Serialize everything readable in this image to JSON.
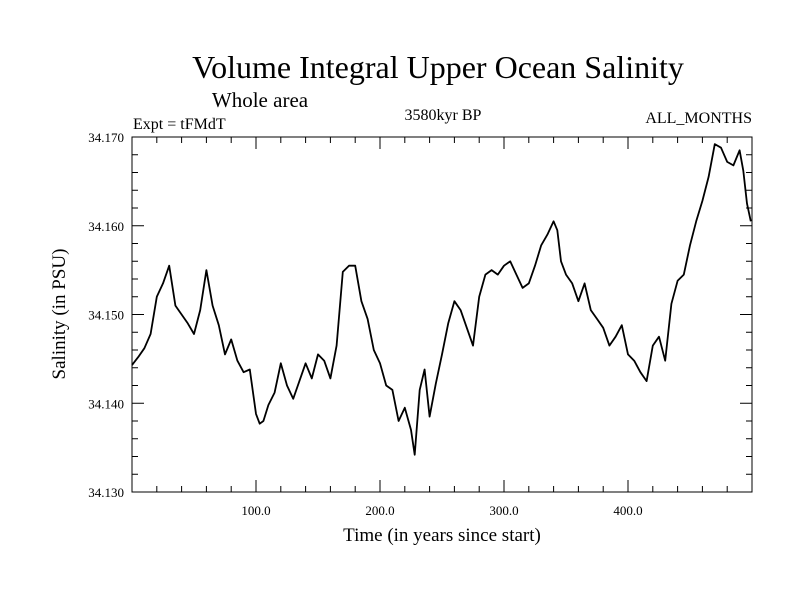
{
  "chart_data": {
    "type": "line",
    "title": "Volume Integral Upper Ocean Salinity",
    "subtitle": "Whole area",
    "left_label": "Expt = tFMdT",
    "center_label": "3580kyr BP",
    "right_label": "ALL_MONTHS",
    "xlabel": "Time (in years since start)",
    "ylabel": "Salinity (in PSU)",
    "xlim": [
      0,
      500
    ],
    "ylim": [
      34.13,
      34.17
    ],
    "x_ticks": [
      100,
      200,
      300,
      400
    ],
    "x_tick_labels": [
      "100.0",
      "200.0",
      "300.0",
      "400.0"
    ],
    "y_ticks": [
      34.13,
      34.14,
      34.15,
      34.16,
      34.17
    ],
    "y_tick_labels": [
      "34.130",
      "34.140",
      "34.150",
      "34.160",
      "34.170"
    ],
    "grid": false,
    "series": [
      {
        "name": "salinity",
        "color": "#000000",
        "x": [
          0,
          5,
          10,
          15,
          20,
          25,
          30,
          35,
          40,
          45,
          50,
          55,
          60,
          65,
          70,
          75,
          80,
          85,
          90,
          95,
          100,
          103,
          106,
          110,
          115,
          120,
          125,
          130,
          135,
          140,
          145,
          150,
          155,
          160,
          165,
          170,
          175,
          180,
          185,
          190,
          195,
          200,
          205,
          210,
          215,
          220,
          225,
          228,
          232,
          236,
          240,
          245,
          250,
          255,
          260,
          265,
          270,
          275,
          280,
          285,
          290,
          295,
          300,
          305,
          310,
          315,
          320,
          325,
          330,
          335,
          340,
          343,
          346,
          350,
          355,
          360,
          365,
          370,
          375,
          380,
          385,
          390,
          395,
          400,
          405,
          410,
          415,
          420,
          425,
          430,
          435,
          440,
          445,
          450,
          455,
          460,
          465,
          470,
          475,
          480,
          485,
          490,
          493,
          496,
          499
        ],
        "values": [
          34.1443,
          34.1452,
          34.1462,
          34.1478,
          34.152,
          34.1535,
          34.1555,
          34.151,
          34.15,
          34.149,
          34.1478,
          34.1505,
          34.155,
          34.151,
          34.1488,
          34.1455,
          34.1472,
          34.1448,
          34.1435,
          34.1438,
          34.1388,
          34.1377,
          34.138,
          34.1398,
          34.1412,
          34.1445,
          34.142,
          34.1405,
          34.1425,
          34.1445,
          34.1428,
          34.1455,
          34.1448,
          34.1428,
          34.1465,
          34.1548,
          34.1555,
          34.1555,
          34.1515,
          34.1495,
          34.146,
          34.1445,
          34.142,
          34.1415,
          34.138,
          34.1395,
          34.137,
          34.1342,
          34.1415,
          34.1438,
          34.1385,
          34.1422,
          34.1455,
          34.149,
          34.1515,
          34.1505,
          34.1485,
          34.1465,
          34.152,
          34.1545,
          34.155,
          34.1545,
          34.1555,
          34.156,
          34.1545,
          34.153,
          34.1535,
          34.1555,
          34.1578,
          34.159,
          34.1605,
          34.1595,
          34.156,
          34.1545,
          34.1535,
          34.1515,
          34.1535,
          34.1505,
          34.1495,
          34.1485,
          34.1465,
          34.1475,
          34.1488,
          34.1455,
          34.1448,
          34.1435,
          34.1425,
          34.1465,
          34.1475,
          34.1448,
          34.1512,
          34.1538,
          34.1545,
          34.1578,
          34.1605,
          34.1628,
          34.1655,
          34.1692,
          34.1688,
          34.1672,
          34.1668,
          34.1685,
          34.1662,
          34.1625,
          34.1605
        ]
      }
    ]
  }
}
